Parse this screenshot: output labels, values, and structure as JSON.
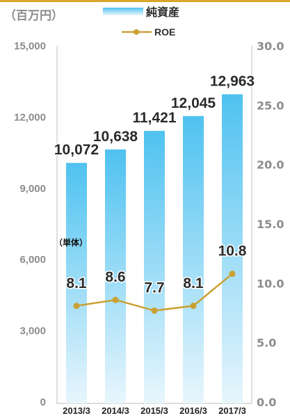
{
  "unit_label": "（百万円）",
  "annotation": "（単体）",
  "colors": {
    "accent_top": "#d8a62b",
    "bar_top": "#4fc2f0",
    "bar_bottom": "#e8f6fd",
    "line": "#c9a032",
    "axis_text": "#8c8c8c",
    "label_text": "#2b2b2b"
  },
  "chart_data": {
    "type": "bar",
    "categories": [
      "2013/3",
      "2014/3",
      "2015/3",
      "2016/3",
      "2017/3"
    ],
    "series": [
      {
        "name": "純資産",
        "type": "bar",
        "axis": "left",
        "values": [
          10072,
          10638,
          11421,
          12045,
          12963
        ],
        "value_labels": [
          "10,072",
          "10,638",
          "11,421",
          "12,045",
          "12,963"
        ]
      },
      {
        "name": "ROE",
        "type": "line",
        "axis": "right",
        "values": [
          8.1,
          8.6,
          7.7,
          8.1,
          10.8
        ],
        "value_labels": [
          "8.1",
          "8.6",
          "7.7",
          "8.1",
          "10.8"
        ]
      }
    ],
    "y_left": {
      "range": [
        0,
        15000
      ],
      "ticks": [
        {
          "value": 15000,
          "label": "15,000"
        },
        {
          "value": 12000,
          "label": "12,000"
        },
        {
          "value": 9000,
          "label": "9,000"
        },
        {
          "value": 6000,
          "label": "6,000"
        },
        {
          "value": 3000,
          "label": "3,000"
        },
        {
          "value": 0,
          "label": "0"
        }
      ]
    },
    "y_right": {
      "range": [
        0,
        30
      ],
      "ticks": [
        {
          "value": 30,
          "label": "30.0"
        },
        {
          "value": 25,
          "label": "25.0"
        },
        {
          "value": 20,
          "label": "20.0"
        },
        {
          "value": 15,
          "label": "15.0"
        },
        {
          "value": 10,
          "label": "10.0"
        },
        {
          "value": 5,
          "label": "5.0"
        },
        {
          "value": 0,
          "label": "0.0"
        }
      ]
    },
    "legend": "top",
    "grid": false
  }
}
